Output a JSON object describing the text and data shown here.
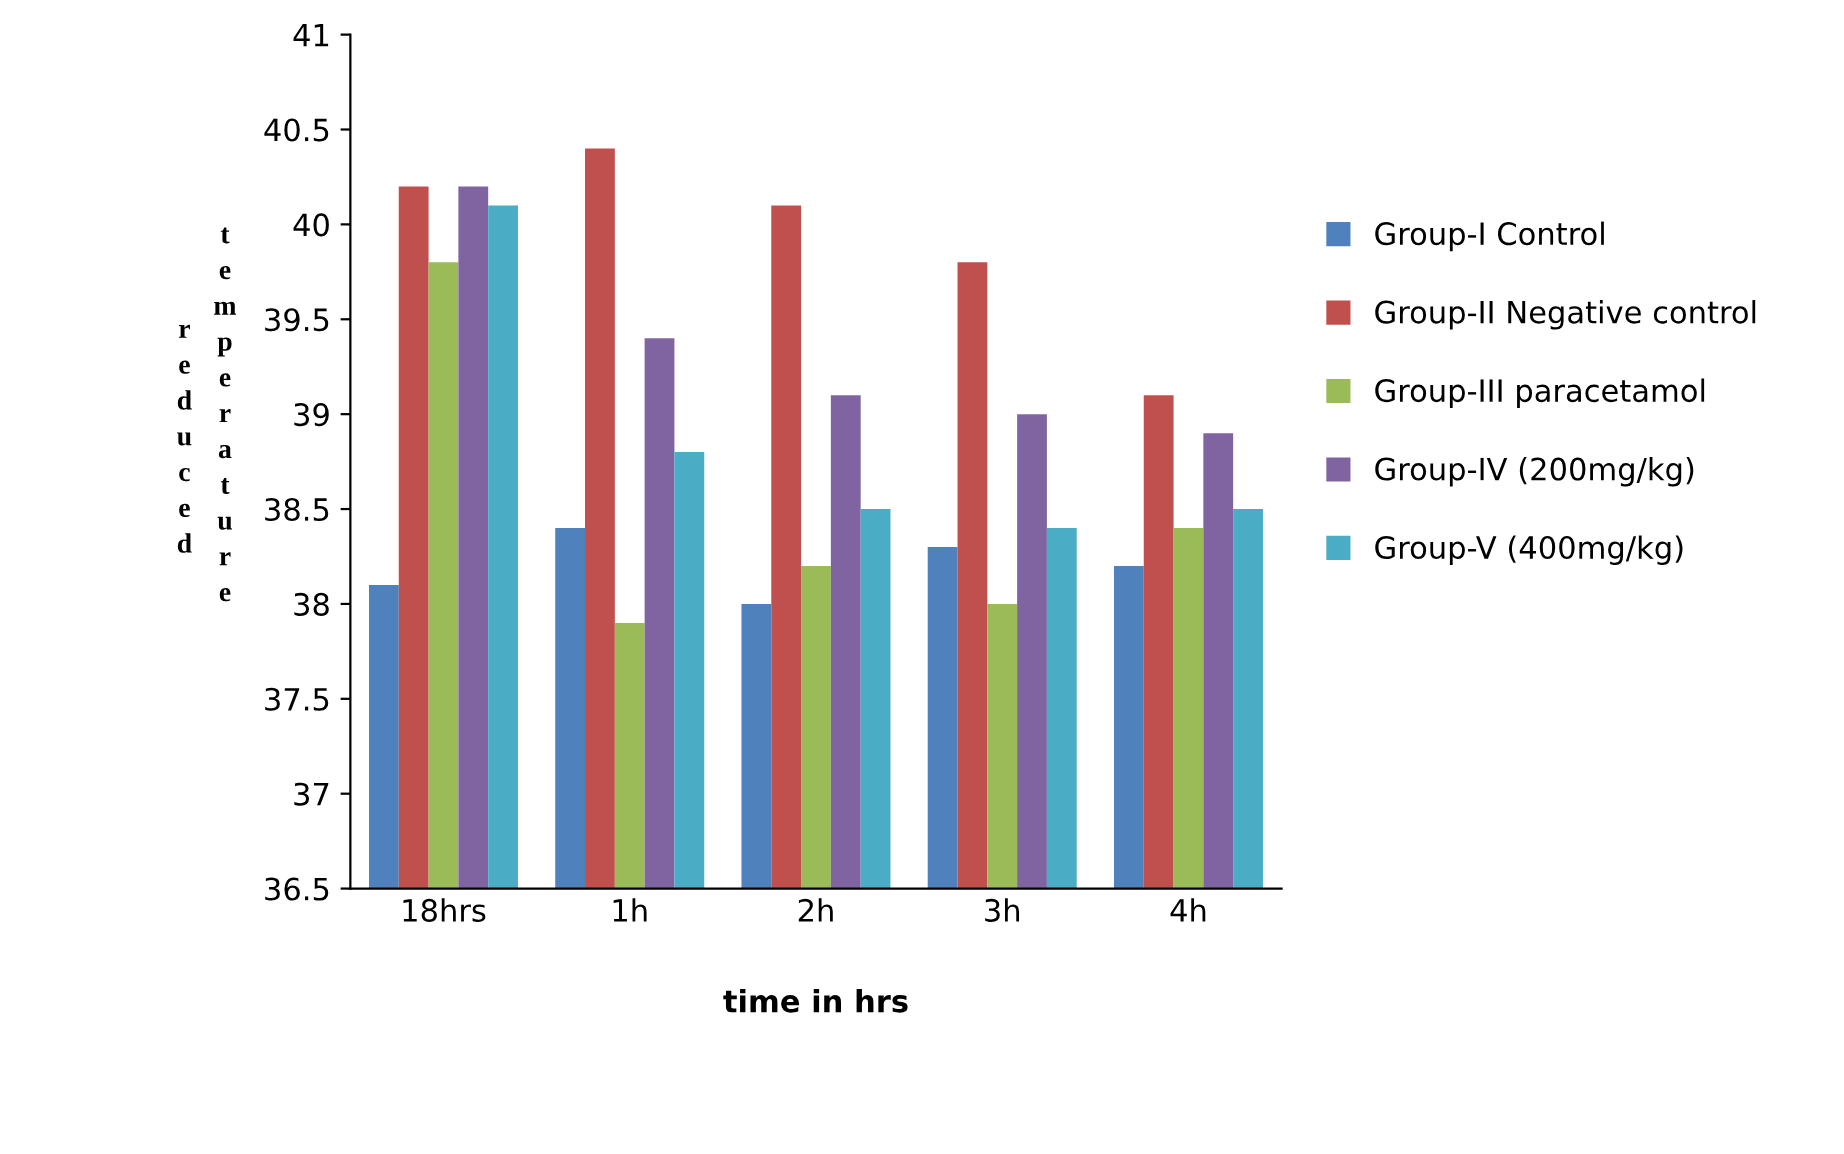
{
  "chart_data": {
    "type": "bar",
    "xlabel": "time in hrs",
    "ylabel": "reduced temperature",
    "categories": [
      "18hrs",
      "1h",
      "2h",
      "3h",
      "4h"
    ],
    "series": [
      {
        "name": "Group-I Control",
        "color": "#4f81bd",
        "values": [
          38.1,
          38.4,
          38.0,
          38.3,
          38.2
        ]
      },
      {
        "name": "Group-II Negative control",
        "color": "#c0504d",
        "values": [
          40.2,
          40.4,
          40.1,
          39.8,
          39.1
        ]
      },
      {
        "name": "Group-III paracetamol",
        "color": "#9bbb59",
        "values": [
          39.8,
          37.9,
          38.2,
          38.0,
          38.4
        ]
      },
      {
        "name": "Group-IV (200mg/kg)",
        "color": "#8064a2",
        "values": [
          40.2,
          39.4,
          39.1,
          39.0,
          38.9
        ]
      },
      {
        "name": "Group-V (400mg/kg)",
        "color": "#4bacc6",
        "values": [
          40.1,
          38.8,
          38.5,
          38.4,
          38.5
        ]
      }
    ],
    "ylim": [
      36.5,
      41
    ],
    "yticks": [
      36.5,
      37,
      37.5,
      38,
      38.5,
      39,
      39.5,
      40,
      40.5,
      41
    ],
    "grid": false,
    "legend": "right"
  }
}
